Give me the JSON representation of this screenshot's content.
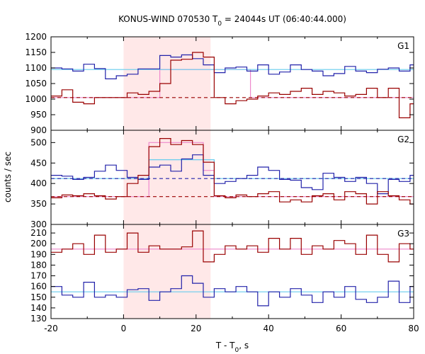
{
  "figure": {
    "title_pre": "KONUS-WIND 070530 T",
    "title_sub": "0",
    "title_post": " = 24044s UT (06:40:44.000)",
    "xlabel_pre": "T - T",
    "xlabel_sub": "0",
    "xlabel_post": ", s",
    "ylabel": "counts / sec",
    "highlight_x": [
      0,
      24
    ],
    "colors": {
      "frame": "#000000",
      "highlight": "#ffe8e8",
      "blue": "#2222aa",
      "dark_red": "#990000",
      "light_blue": "#66ccee",
      "pink": "#ee88cc"
    }
  },
  "chart_data": [
    {
      "type": "line",
      "panel_label": "G1",
      "xlim": [
        -20,
        80
      ],
      "ylim": [
        900,
        1200
      ],
      "xticks": [
        "-20",
        "0",
        "20",
        "40",
        "60",
        "80"
      ],
      "yticks": [
        "900",
        "950",
        "1000",
        "1050",
        "1100",
        "1150",
        "1200"
      ],
      "series": [
        {
          "role": "blue",
          "x": [
            -20,
            -17,
            -14,
            -11,
            -8,
            -5,
            -2,
            1,
            4,
            7,
            10,
            13,
            16,
            19,
            22,
            25,
            28,
            31,
            34,
            37,
            40,
            43,
            46,
            49,
            52,
            55,
            58,
            61,
            64,
            67,
            70,
            73,
            76,
            79,
            80
          ],
          "y": [
            1100,
            1097,
            1090,
            1112,
            1098,
            1065,
            1075,
            1080,
            1097,
            1097,
            1140,
            1135,
            1142,
            1130,
            1110,
            1085,
            1100,
            1103,
            1090,
            1110,
            1080,
            1087,
            1110,
            1095,
            1090,
            1075,
            1082,
            1105,
            1090,
            1085,
            1096,
            1100,
            1090,
            1110,
            1110
          ]
        },
        {
          "role": "dark_red",
          "x": [
            -20,
            -17,
            -14,
            -11,
            -8,
            -5,
            -2,
            1,
            4,
            7,
            10,
            13,
            16,
            19,
            22,
            25,
            28,
            31,
            34,
            37,
            40,
            43,
            46,
            49,
            52,
            55,
            58,
            61,
            64,
            67,
            70,
            73,
            76,
            79,
            80
          ],
          "y": [
            1010,
            1030,
            990,
            985,
            1005,
            1005,
            1005,
            1020,
            1015,
            1025,
            1050,
            1125,
            1128,
            1150,
            1135,
            1005,
            985,
            995,
            1000,
            1010,
            1020,
            1015,
            1025,
            1035,
            1015,
            1025,
            1020,
            1010,
            1015,
            1035,
            1005,
            1035,
            940,
            985,
            1010
          ]
        },
        {
          "role": "pink_bg",
          "x": [
            -20,
            10,
            10,
            35,
            35,
            80
          ],
          "y": [
            1005,
            1005,
            1095,
            1095,
            1005,
            1005
          ]
        },
        {
          "role": "light_blue",
          "x": [
            -20,
            80
          ],
          "y": [
            1095,
            1095
          ]
        },
        {
          "role": "dark_red_dashed",
          "x": [
            -20,
            80
          ],
          "y": [
            1005,
            1005
          ]
        }
      ]
    },
    {
      "type": "line",
      "panel_label": "G2",
      "xlim": [
        -20,
        80
      ],
      "ylim": [
        300,
        530
      ],
      "yticks": [
        "300",
        "350",
        "400",
        "450",
        "500"
      ],
      "series": [
        {
          "role": "blue",
          "x": [
            -20,
            -17,
            -14,
            -11,
            -8,
            -5,
            -2,
            1,
            4,
            7,
            10,
            13,
            16,
            19,
            22,
            25,
            28,
            31,
            34,
            37,
            40,
            43,
            46,
            49,
            52,
            55,
            58,
            61,
            64,
            67,
            70,
            73,
            76,
            79,
            80
          ],
          "y": [
            420,
            418,
            410,
            415,
            430,
            445,
            432,
            415,
            410,
            440,
            445,
            430,
            460,
            470,
            420,
            400,
            405,
            412,
            420,
            440,
            432,
            410,
            408,
            390,
            385,
            425,
            415,
            405,
            415,
            400,
            375,
            410,
            405,
            420,
            420
          ]
        },
        {
          "role": "dark_red",
          "x": [
            -20,
            -17,
            -14,
            -11,
            -8,
            -5,
            -2,
            1,
            4,
            7,
            10,
            13,
            16,
            19,
            22,
            25,
            28,
            31,
            34,
            37,
            40,
            43,
            46,
            49,
            52,
            55,
            58,
            61,
            64,
            67,
            70,
            73,
            76,
            79,
            80
          ],
          "y": [
            365,
            372,
            370,
            375,
            370,
            362,
            368,
            400,
            420,
            490,
            510,
            495,
            505,
            495,
            452,
            370,
            365,
            372,
            368,
            375,
            380,
            355,
            360,
            355,
            370,
            375,
            360,
            380,
            375,
            350,
            380,
            370,
            360,
            350,
            350
          ]
        },
        {
          "role": "pink_bg",
          "x": [
            -20,
            7,
            7,
            22,
            22,
            25,
            25,
            80
          ],
          "y": [
            368,
            368,
            500,
            500,
            432,
            432,
            368,
            368
          ]
        },
        {
          "role": "light_blue_bg",
          "x": [
            -20,
            7,
            7,
            22,
            22,
            25,
            25,
            80
          ],
          "y": [
            412,
            412,
            458,
            458,
            458,
            458,
            412,
            412
          ]
        },
        {
          "role": "blue_dashed",
          "x": [
            -20,
            80
          ],
          "y": [
            412,
            412
          ]
        },
        {
          "role": "dark_red_dashed",
          "x": [
            -20,
            80
          ],
          "y": [
            368,
            368
          ]
        }
      ]
    },
    {
      "type": "line",
      "panel_label": "G3",
      "xlim": [
        -20,
        80
      ],
      "ylim": [
        130,
        218
      ],
      "yticks": [
        "130",
        "140",
        "150",
        "160",
        "170",
        "180",
        "190",
        "200",
        "210"
      ],
      "series": [
        {
          "role": "dark_red",
          "x": [
            -20,
            -17,
            -14,
            -11,
            -8,
            -5,
            -2,
            1,
            4,
            7,
            10,
            13,
            16,
            19,
            22,
            25,
            28,
            31,
            34,
            37,
            40,
            43,
            46,
            49,
            52,
            55,
            58,
            61,
            64,
            67,
            70,
            73,
            76,
            79,
            80
          ],
          "y": [
            192,
            195,
            200,
            190,
            208,
            192,
            195,
            210,
            192,
            198,
            195,
            195,
            197,
            212,
            183,
            190,
            198,
            195,
            198,
            192,
            205,
            195,
            205,
            190,
            198,
            195,
            203,
            200,
            190,
            208,
            190,
            183,
            200,
            195,
            195
          ]
        },
        {
          "role": "blue",
          "x": [
            -20,
            -17,
            -14,
            -11,
            -8,
            -5,
            -2,
            1,
            4,
            7,
            10,
            13,
            16,
            19,
            22,
            25,
            28,
            31,
            34,
            37,
            40,
            43,
            46,
            49,
            52,
            55,
            58,
            61,
            64,
            67,
            70,
            73,
            76,
            79,
            80
          ],
          "y": [
            160,
            152,
            150,
            164,
            150,
            152,
            150,
            157,
            158,
            147,
            155,
            158,
            170,
            163,
            150,
            158,
            155,
            160,
            155,
            142,
            155,
            150,
            158,
            152,
            145,
            155,
            150,
            160,
            148,
            145,
            150,
            165,
            145,
            160,
            160
          ]
        },
        {
          "role": "pink",
          "x": [
            -20,
            80
          ],
          "y": [
            195,
            195
          ]
        },
        {
          "role": "light_blue",
          "x": [
            -20,
            80
          ],
          "y": [
            155,
            155
          ]
        }
      ]
    }
  ]
}
